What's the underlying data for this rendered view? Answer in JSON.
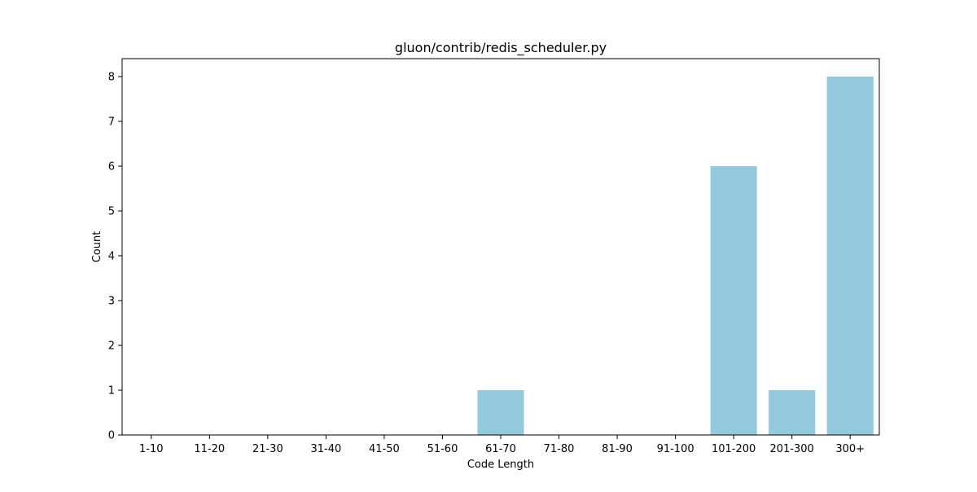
{
  "chart_data": {
    "type": "bar",
    "title": "gluon/contrib/redis_scheduler.py",
    "xlabel": "Code Length",
    "ylabel": "Count",
    "categories": [
      "1-10",
      "11-20",
      "21-30",
      "31-40",
      "41-50",
      "51-60",
      "61-70",
      "71-80",
      "81-90",
      "91-100",
      "101-200",
      "201-300",
      "300+"
    ],
    "values": [
      0,
      0,
      0,
      0,
      0,
      0,
      1,
      0,
      0,
      0,
      6,
      1,
      8
    ],
    "ylim": [
      0,
      8.4
    ],
    "yticks": [
      "0",
      "1",
      "2",
      "3",
      "4",
      "5",
      "6",
      "7",
      "8"
    ],
    "grid": false,
    "legend": "none",
    "colors": {
      "bar": "#95c9de",
      "axis": "#000000",
      "text": "#000000",
      "background": "#ffffff"
    }
  }
}
